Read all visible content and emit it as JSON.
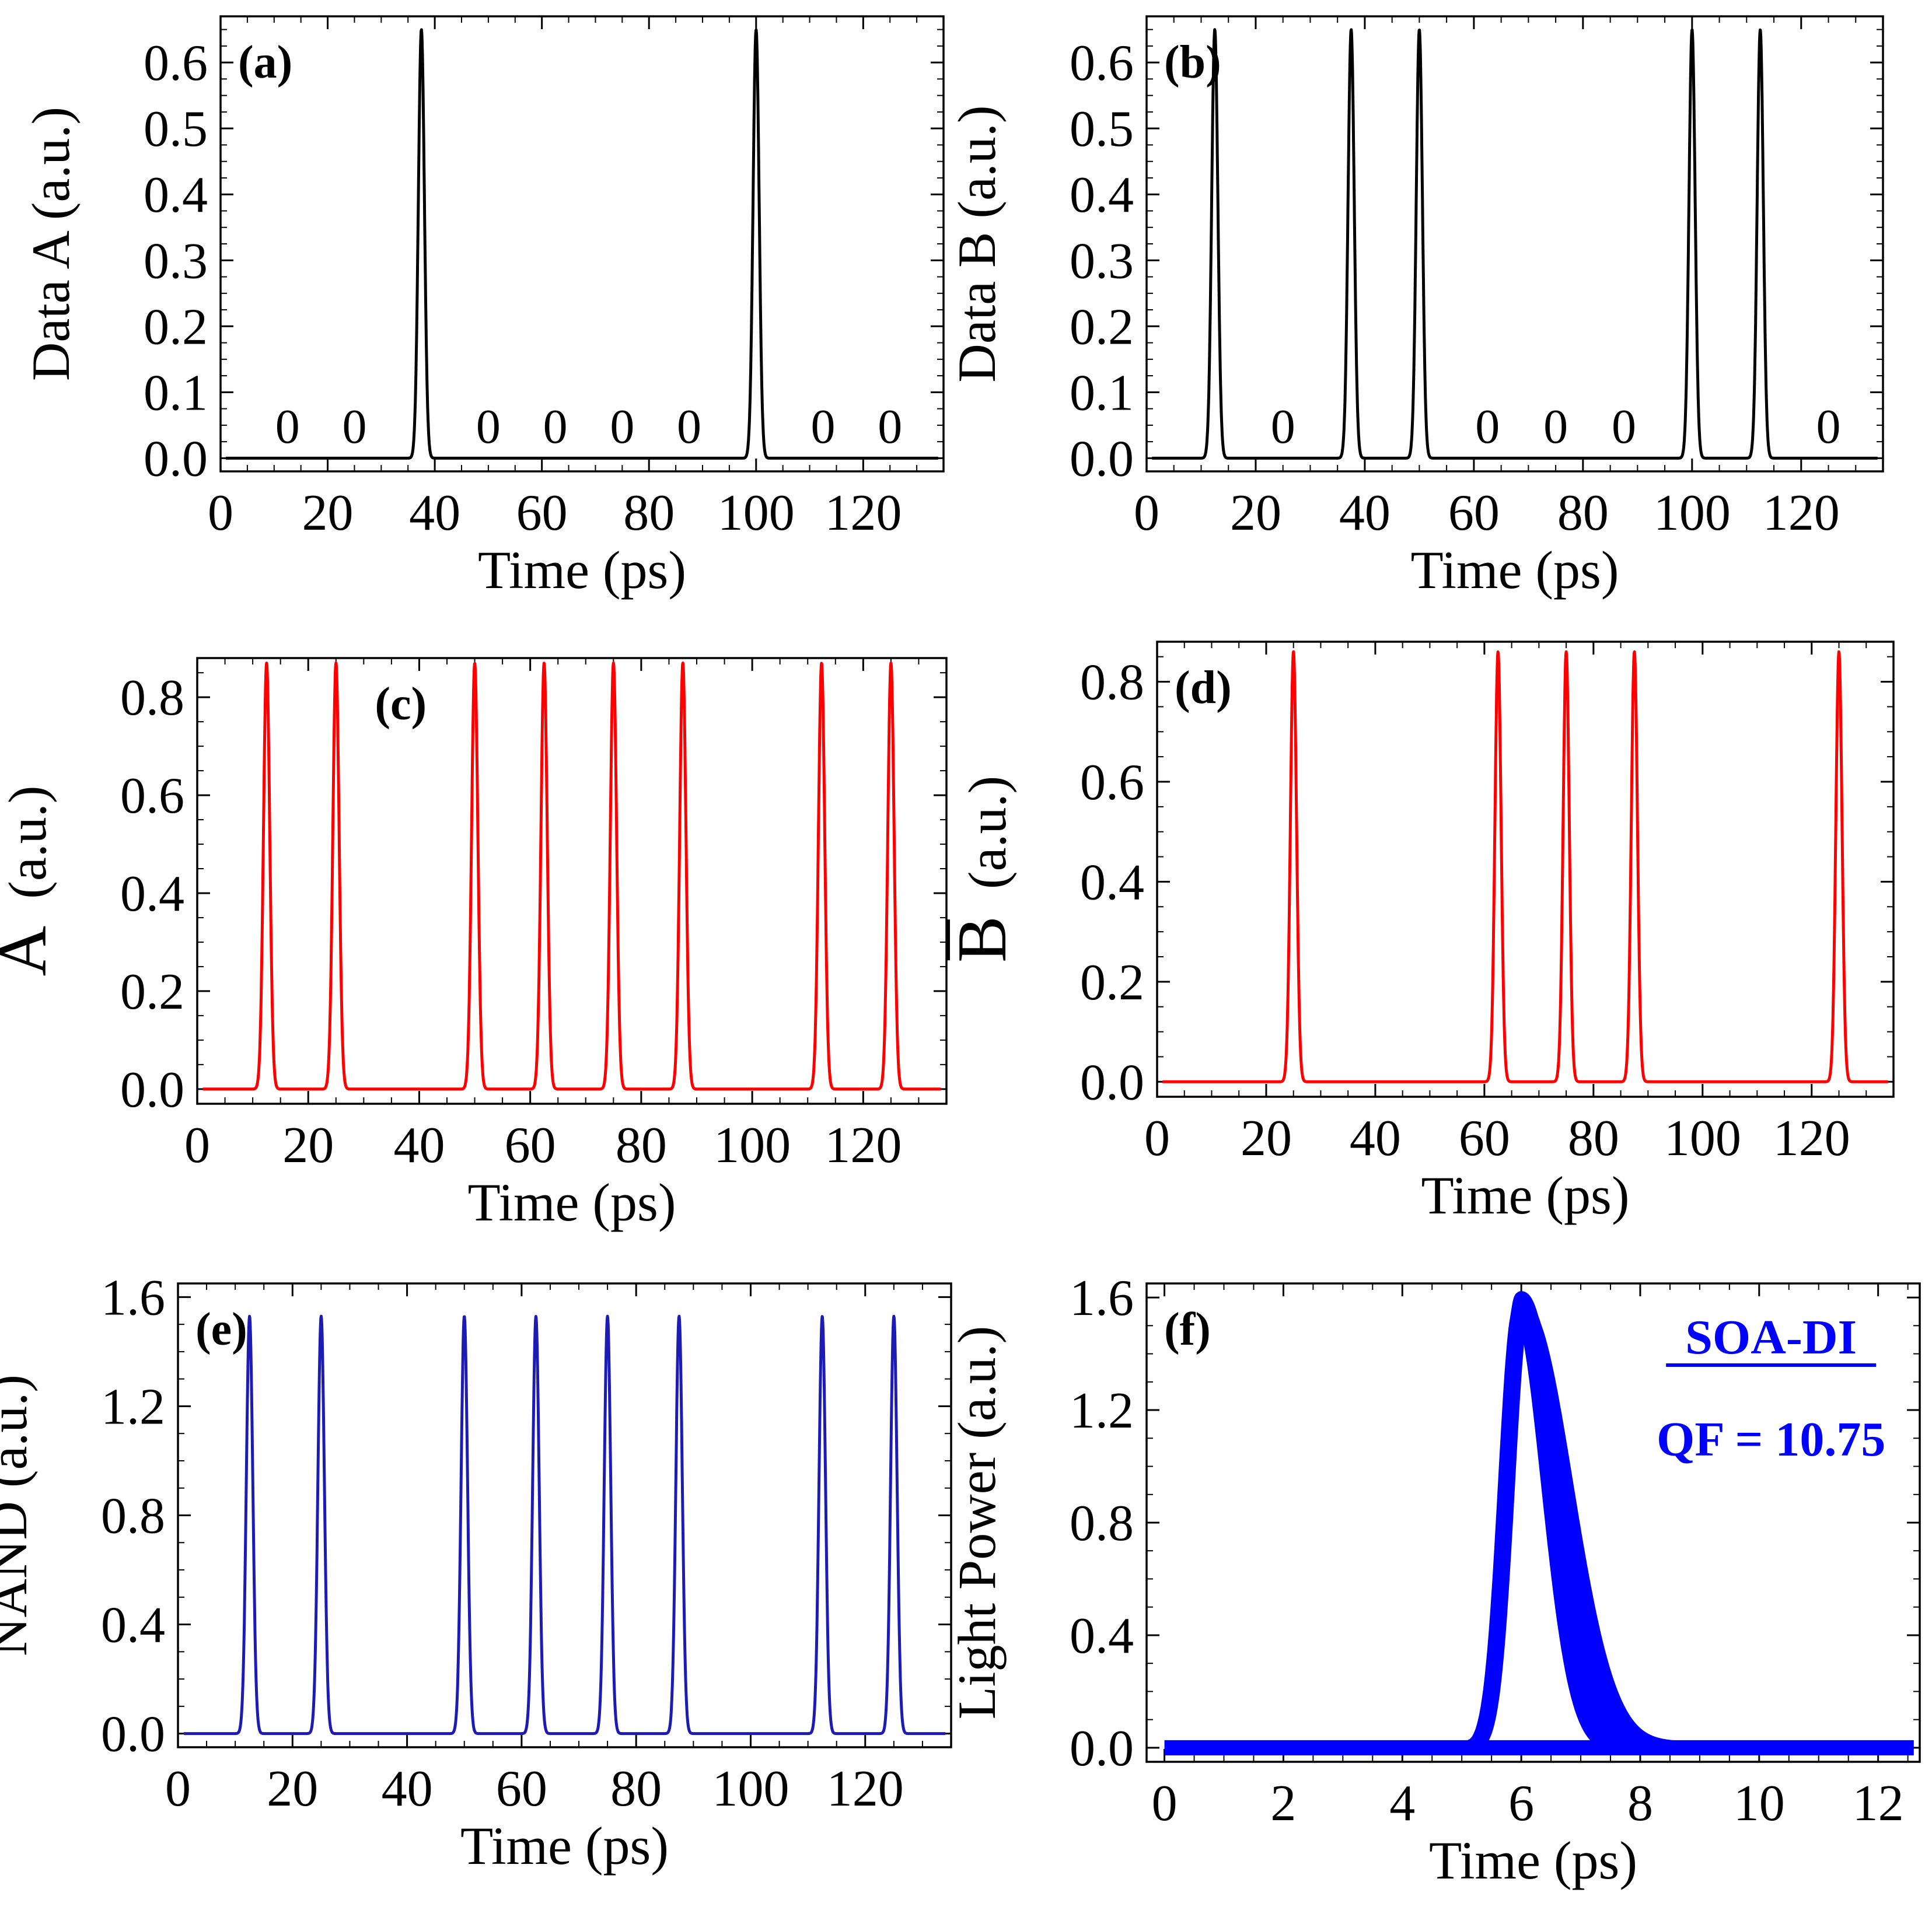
{
  "chart_data": [
    {
      "id": "a",
      "type": "line",
      "panel_label": "(a)",
      "xlabel": "Time (ps)",
      "ylabel": "Data A (a.u.)",
      "xlim": [
        0,
        135
      ],
      "ylim": [
        -0.02,
        0.67
      ],
      "xticks": [
        0,
        20,
        40,
        60,
        80,
        100,
        120
      ],
      "yticks": [
        0.0,
        0.1,
        0.2,
        0.3,
        0.4,
        0.5,
        0.6
      ],
      "ytick_labels": [
        "0.0",
        "0.1",
        "0.2",
        "0.3",
        "0.4",
        "0.5",
        "0.6"
      ],
      "color": "#000000",
      "pulse_amplitude": 0.65,
      "pulse_width_ps": 0.8,
      "pulse_times": [
        37.5,
        100
      ],
      "zero_markers": {
        "text": "0",
        "x": [
          12.5,
          25,
          50,
          62.5,
          75,
          87.5,
          112.5,
          125
        ],
        "y": 0.05
      }
    },
    {
      "id": "b",
      "type": "line",
      "panel_label": "(b)",
      "xlabel": "Time (ps)",
      "ylabel": "Data B (a.u.)",
      "xlim": [
        0,
        135
      ],
      "ylim": [
        -0.02,
        0.67
      ],
      "xticks": [
        0,
        20,
        40,
        60,
        80,
        100,
        120
      ],
      "yticks": [
        0.0,
        0.1,
        0.2,
        0.3,
        0.4,
        0.5,
        0.6
      ],
      "ytick_labels": [
        "0.0",
        "0.1",
        "0.2",
        "0.3",
        "0.4",
        "0.5",
        "0.6"
      ],
      "color": "#000000",
      "pulse_amplitude": 0.65,
      "pulse_width_ps": 0.8,
      "pulse_times": [
        12.5,
        37.5,
        50,
        100,
        112.5
      ],
      "zero_markers": {
        "text": "0",
        "x": [
          25,
          62.5,
          75,
          87.5,
          125
        ],
        "y": 0.05
      }
    },
    {
      "id": "c",
      "type": "line",
      "panel_label": "(c)",
      "xlabel": "Time (ps)",
      "ylabel_symbol": "A",
      "ylabel_unit": "(a.u.)",
      "xlim": [
        0,
        135
      ],
      "ylim": [
        -0.03,
        0.88
      ],
      "xticks": [
        0,
        20,
        40,
        60,
        80,
        100,
        120
      ],
      "yticks": [
        0.0,
        0.2,
        0.4,
        0.6,
        0.8
      ],
      "ytick_labels": [
        "0.0",
        "0.2",
        "0.4",
        "0.6",
        "0.8"
      ],
      "color": "#ff0000",
      "pulse_amplitude": 0.87,
      "pulse_width_ps": 0.8,
      "pulse_times": [
        12.5,
        25,
        50,
        62.5,
        75,
        87.5,
        112.5,
        125
      ]
    },
    {
      "id": "d",
      "type": "line",
      "panel_label": "(d)",
      "xlabel": "Time (ps)",
      "ylabel_symbol": "B",
      "ylabel_unit": "(a.u.)",
      "xlim": [
        0,
        135
      ],
      "ylim": [
        -0.03,
        0.88
      ],
      "xticks": [
        0,
        20,
        40,
        60,
        80,
        100,
        120
      ],
      "yticks": [
        0.0,
        0.2,
        0.4,
        0.6,
        0.8
      ],
      "ytick_labels": [
        "0.0",
        "0.2",
        "0.4",
        "0.6",
        "0.8"
      ],
      "color": "#ff0000",
      "pulse_amplitude": 0.86,
      "pulse_width_ps": 0.8,
      "pulse_times": [
        25,
        62.5,
        75,
        87.5,
        125
      ]
    },
    {
      "id": "e",
      "type": "line",
      "panel_label": "(e)",
      "xlabel": "Time (ps)",
      "ylabel": "NAND (a.u.)",
      "xlim": [
        0,
        135
      ],
      "ylim": [
        -0.05,
        1.65
      ],
      "xticks": [
        0,
        20,
        40,
        60,
        80,
        100,
        120
      ],
      "yticks": [
        0.0,
        0.4,
        0.8,
        1.2,
        1.6
      ],
      "ytick_labels": [
        "0.0",
        "0.4",
        "0.8",
        "1.2",
        "1.6"
      ],
      "color": "#1c1cb4",
      "pulse_amplitude": 1.53,
      "pulse_width_ps": 0.8,
      "pulse_times": [
        12.5,
        25,
        50,
        62.5,
        75,
        87.5,
        112.5,
        125
      ]
    },
    {
      "id": "f",
      "type": "line",
      "panel_label": "(f)",
      "xlabel": "Time (ps)",
      "ylabel": "Light Power (a.u.)",
      "xlim": [
        -0.3,
        12.7
      ],
      "ylim": [
        -0.05,
        1.65
      ],
      "xticks": [
        0,
        2,
        4,
        6,
        8,
        10,
        12
      ],
      "yticks": [
        0.0,
        0.4,
        0.8,
        1.2,
        1.6
      ],
      "ytick_labels": [
        "0.0",
        "0.4",
        "0.8",
        "1.2",
        "1.6"
      ],
      "color": "#0000ff",
      "eye_peak_time": 6.0,
      "eye_peak_value": 1.6,
      "eye_rise_ps": 0.35,
      "eye_fall_ps": 0.85,
      "legend_title": "SOA-DI",
      "legend_text": "QF = 10.75"
    }
  ]
}
